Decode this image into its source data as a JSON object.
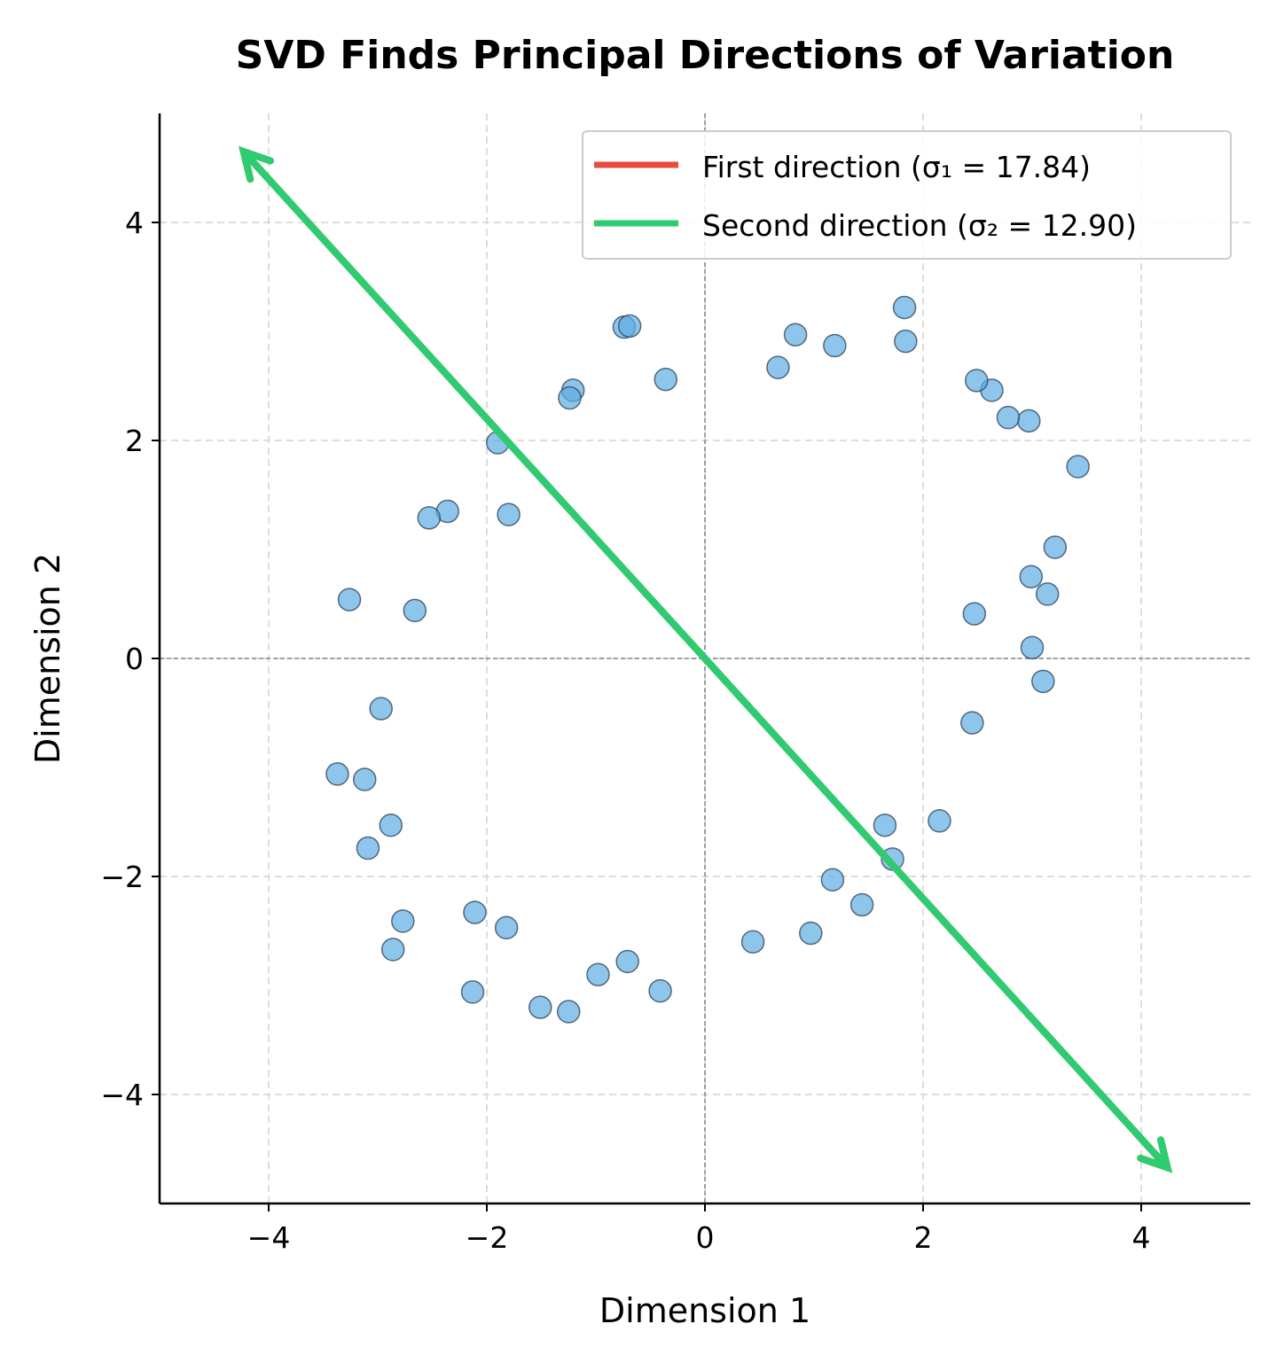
{
  "chart_data": {
    "type": "scatter",
    "title": "SVD Finds Principal Directions of Variation",
    "xlabel": "Dimension 1",
    "ylabel": "Dimension 2",
    "xlim": [
      -5,
      5
    ],
    "ylim": [
      -5,
      5
    ],
    "xticks": [
      -4,
      -2,
      0,
      2,
      4
    ],
    "yticks": [
      -4,
      -2,
      0,
      2,
      4
    ],
    "xtick_labels": [
      "−4",
      "−2",
      "0",
      "2",
      "4"
    ],
    "ytick_labels": [
      "−4",
      "−2",
      "0",
      "2",
      "4"
    ],
    "grid": true,
    "legend_placement": "top-right",
    "point_color": "#5dade2",
    "points": [
      [
        -0.74,
        3.04
      ],
      [
        -0.69,
        3.05
      ],
      [
        -0.36,
        2.56
      ],
      [
        -1.21,
        2.46
      ],
      [
        -1.24,
        2.39
      ],
      [
        -1.9,
        1.98
      ],
      [
        -1.8,
        1.32
      ],
      [
        -2.36,
        1.35
      ],
      [
        -2.53,
        1.29
      ],
      [
        -3.26,
        0.54
      ],
      [
        -2.66,
        0.44
      ],
      [
        -2.97,
        -0.46
      ],
      [
        -3.37,
        -1.06
      ],
      [
        -3.12,
        -1.11
      ],
      [
        -2.88,
        -1.53
      ],
      [
        -3.09,
        -1.74
      ],
      [
        -2.77,
        -2.41
      ],
      [
        -2.86,
        -2.67
      ],
      [
        -2.11,
        -2.33
      ],
      [
        -1.82,
        -2.47
      ],
      [
        -2.13,
        -3.06
      ],
      [
        -1.51,
        -3.2
      ],
      [
        -1.25,
        -3.24
      ],
      [
        -0.98,
        -2.9
      ],
      [
        -0.71,
        -2.78
      ],
      [
        -0.41,
        -3.05
      ],
      [
        0.44,
        -2.6
      ],
      [
        0.97,
        -2.52
      ],
      [
        1.17,
        -2.03
      ],
      [
        1.44,
        -2.26
      ],
      [
        1.72,
        -1.84
      ],
      [
        1.65,
        -1.53
      ],
      [
        2.15,
        -1.49
      ],
      [
        2.45,
        -0.59
      ],
      [
        3.1,
        -0.21
      ],
      [
        3.0,
        0.1
      ],
      [
        2.47,
        0.41
      ],
      [
        3.14,
        0.59
      ],
      [
        2.99,
        0.75
      ],
      [
        3.21,
        1.02
      ],
      [
        3.42,
        1.76
      ],
      [
        2.97,
        2.18
      ],
      [
        2.78,
        2.21
      ],
      [
        2.63,
        2.46
      ],
      [
        2.49,
        2.55
      ],
      [
        1.84,
        2.91
      ],
      [
        1.83,
        3.22
      ],
      [
        1.19,
        2.87
      ],
      [
        0.83,
        2.97
      ],
      [
        0.67,
        2.67
      ]
    ],
    "series": [
      {
        "name": "First direction (σ₁ = 17.84)",
        "color": "#e74c3c",
        "from": [
          -4.23,
          4.65
        ],
        "to": [
          4.24,
          -4.67
        ]
      },
      {
        "name": "Second direction (σ₂ = 12.90)",
        "color": "#2ecc71",
        "from": [
          -4.23,
          4.65
        ],
        "to": [
          4.24,
          -4.67
        ]
      }
    ]
  }
}
